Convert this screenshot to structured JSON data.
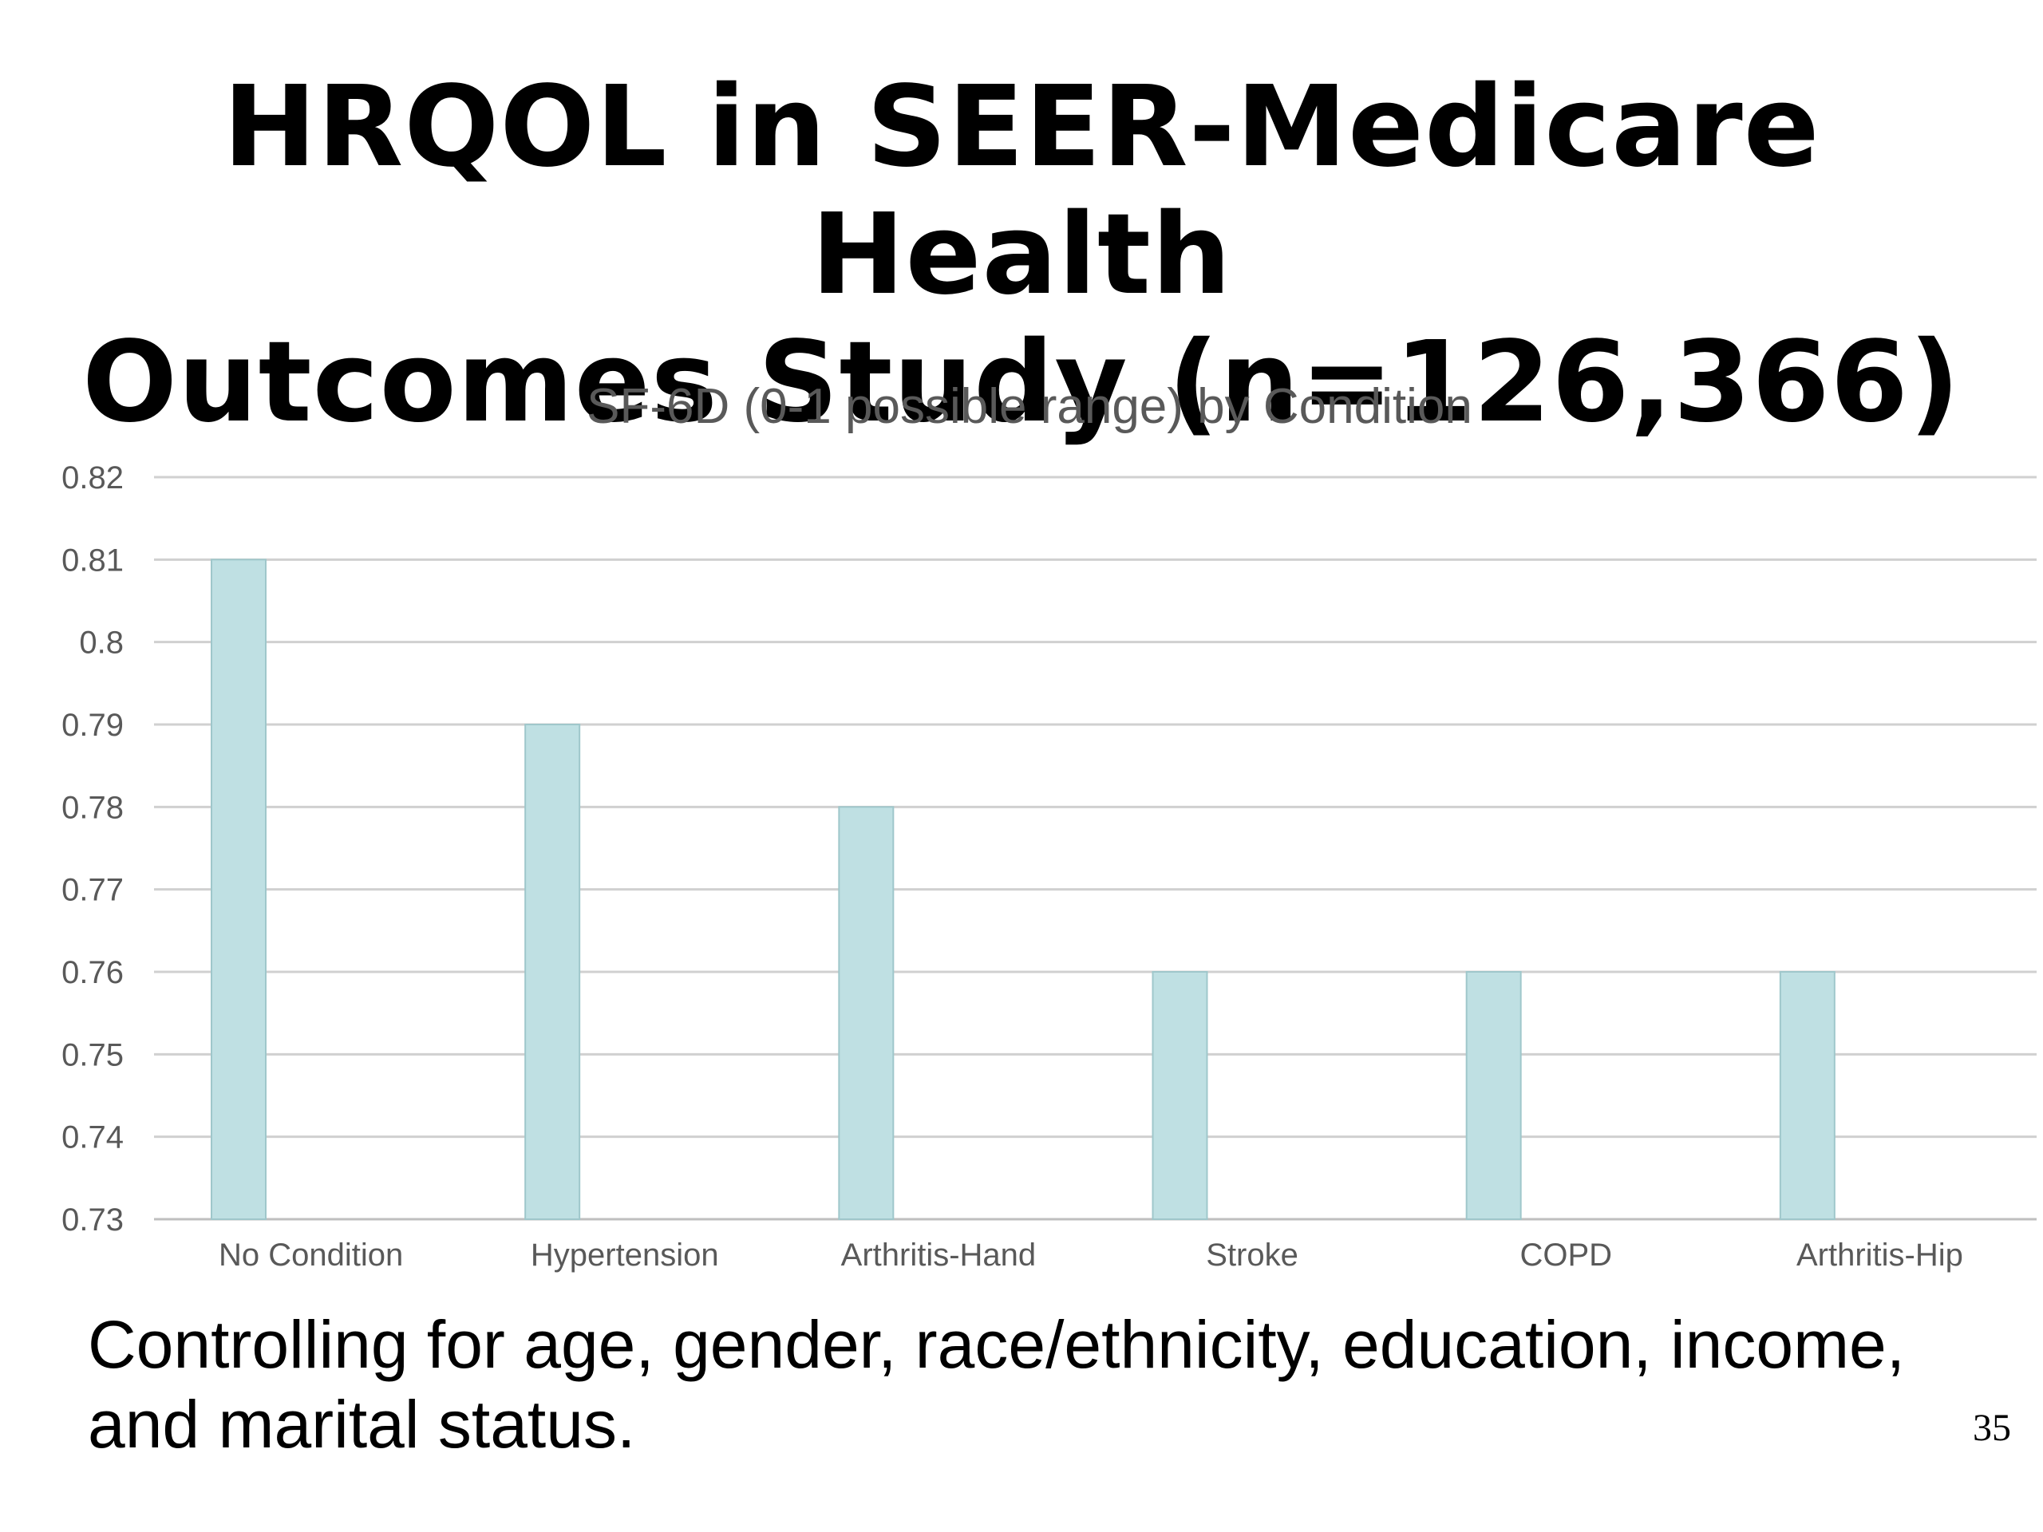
{
  "slide": {
    "title_line1": "HRQOL in SEER-Medicare Health",
    "title_line2": "Outcomes Study (n=126,366)",
    "footnote_line1": "Controlling for age, gender, race/ethnicity, education, income,",
    "footnote_line2": "and marital status.",
    "page_number": "35"
  },
  "chart_data": {
    "type": "bar",
    "title": "SF-6D (0-1 possible range) by Condition",
    "xlabel": "",
    "ylabel": "",
    "categories": [
      "No Condition",
      "Hypertension",
      "Arthritis-Hand",
      "Stroke",
      "COPD",
      "Arthritis-Hip"
    ],
    "values": [
      0.81,
      0.79,
      0.78,
      0.76,
      0.76,
      0.76
    ],
    "ylim": [
      0.73,
      0.82
    ],
    "y_ticks": [
      "0.73",
      "0.74",
      "0.75",
      "0.76",
      "0.77",
      "0.78",
      "0.79",
      "0.8",
      "0.81",
      "0.82"
    ],
    "grid": true,
    "legend": "none",
    "bar_color": "#bfe0e3"
  }
}
